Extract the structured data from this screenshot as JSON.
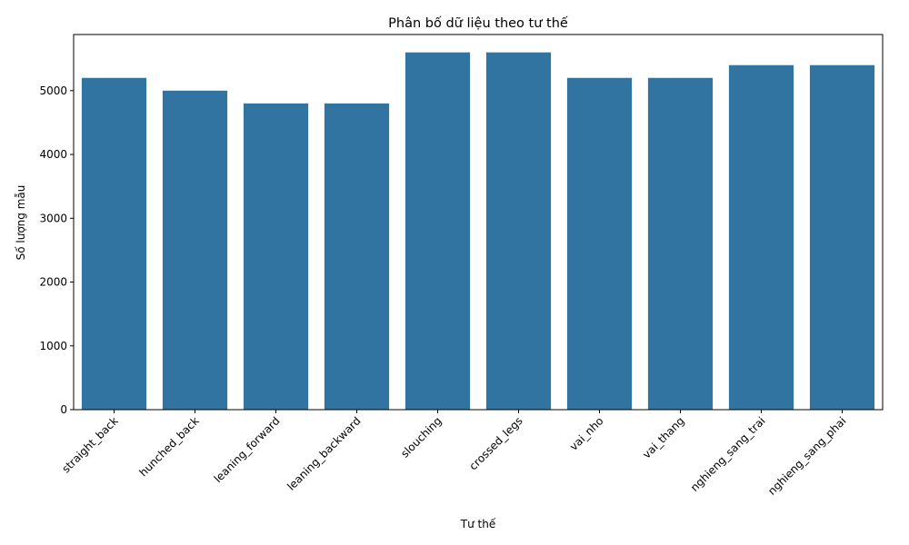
{
  "chart_data": {
    "type": "bar",
    "title": "Phân bố dữ liệu theo tư thế",
    "xlabel": "Tư thế",
    "ylabel": "Số lượng mẫu",
    "categories": [
      "straight_back",
      "hunched_back",
      "leaning_forward",
      "leaning_backward",
      "slouching",
      "crossed_legs",
      "vai_nho",
      "vai_thang",
      "nghieng_sang_trai",
      "nghieng_sang_phai"
    ],
    "values": [
      5200,
      5000,
      4800,
      4800,
      5600,
      5600,
      5200,
      5200,
      5400,
      5400
    ],
    "ylim": [
      0,
      5880
    ],
    "yticks": [
      0,
      1000,
      2000,
      3000,
      4000,
      5000
    ],
    "bar_color": "#3274a1",
    "grid": false,
    "legend": "none"
  }
}
